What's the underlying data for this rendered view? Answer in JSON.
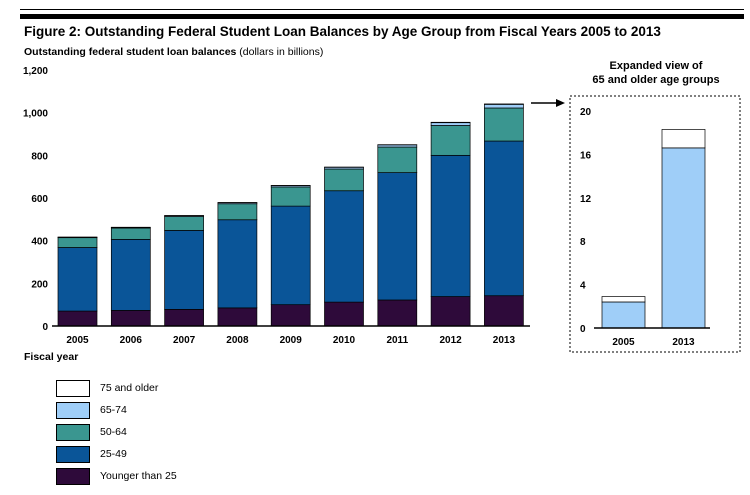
{
  "figure": {
    "title": "Figure 2: Outstanding Federal Student Loan Balances by Age Group from Fiscal Years 2005 to 2013",
    "subtitle_bold": "Outstanding federal student loan balances",
    "subtitle_rest": " (dollars in billions)"
  },
  "expanded": {
    "title_line1": "Expanded view of",
    "title_line2": "65 and older age groups"
  },
  "colors": {
    "younger_than_25": "#2e0a3a",
    "25_49": "#0a5598",
    "50_64": "#3a9690",
    "65_74": "#9fcef8",
    "75_older": "#ffffff"
  },
  "chart_data": [
    {
      "type": "bar",
      "stacked": true,
      "title": "Outstanding federal student loan balances (dollars in billions)",
      "xlabel": "Fiscal year",
      "ylabel": "",
      "categories": [
        "2005",
        "2006",
        "2007",
        "2008",
        "2009",
        "2010",
        "2011",
        "2012",
        "2013"
      ],
      "ylim": [
        0,
        1200
      ],
      "yticks": [
        0,
        200,
        400,
        600,
        800,
        1000,
        1200
      ],
      "ytick_labels": [
        "0",
        "200",
        "400",
        "600",
        "800",
        "1,000",
        "1,200"
      ],
      "series": [
        {
          "name": "Younger than 25",
          "key": "younger_than_25",
          "values": [
            70,
            73,
            78,
            85,
            100,
            112,
            122,
            138,
            142
          ]
        },
        {
          "name": "25-49",
          "key": "25_49",
          "values": [
            298,
            333,
            370,
            413,
            462,
            522,
            597,
            662,
            725
          ]
        },
        {
          "name": "50-64",
          "key": "50_64",
          "values": [
            46,
            53,
            65,
            75,
            90,
            102,
            120,
            140,
            155
          ]
        },
        {
          "name": "65-74",
          "key": "65_74",
          "values": [
            2,
            3,
            4,
            5,
            6,
            8,
            10,
            13,
            17
          ]
        },
        {
          "name": "75 and older",
          "key": "75_older",
          "values": [
            1,
            1,
            1,
            1,
            1,
            1,
            1,
            2,
            2
          ]
        }
      ]
    },
    {
      "type": "bar",
      "stacked": true,
      "title": "Expanded view of 65 and older age groups",
      "categories": [
        "2005",
        "2013"
      ],
      "ylim": [
        0,
        20
      ],
      "yticks": [
        0,
        4,
        8,
        12,
        16,
        20
      ],
      "ytick_labels": [
        "0",
        "4",
        "8",
        "12",
        "16",
        "20"
      ],
      "series": [
        {
          "name": "65-74",
          "key": "65_74",
          "values": [
            2.4,
            16.6
          ]
        },
        {
          "name": "75 and older",
          "key": "75_older",
          "values": [
            0.5,
            1.7
          ]
        }
      ]
    }
  ],
  "legend": [
    {
      "key": "75_older",
      "label": "75 and older"
    },
    {
      "key": "65_74",
      "label": "65-74"
    },
    {
      "key": "50_64",
      "label": "50-64"
    },
    {
      "key": "25_49",
      "label": "25-49"
    },
    {
      "key": "younger_than_25",
      "label": "Younger than 25"
    }
  ]
}
